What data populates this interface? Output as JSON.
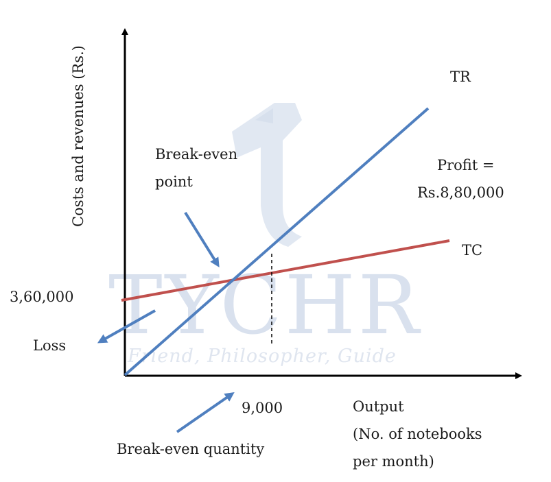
{
  "watermark": {
    "brand": "TYCHR",
    "tagline": "Friend, Philosopher, Guide"
  },
  "axes": {
    "y_label": "Costs and revenues (Rs.)",
    "x_label_line1": "Output",
    "x_label_line2": "(No. of notebooks",
    "x_label_line3": "per month)"
  },
  "lines": {
    "tr_label": "TR",
    "tc_label": "TC",
    "tr_color": "#4f7fbf",
    "tc_color": "#c0504d"
  },
  "annotations": {
    "break_even_point_line1": "Break-even",
    "break_even_point_line2": "point",
    "profit_line1": "Profit =",
    "profit_line2": "Rs.8,80,000",
    "fixed_cost_value": "3,60,000",
    "loss": "Loss",
    "break_even_quantity_value": "9,000",
    "break_even_quantity": "Break-even quantity"
  },
  "colors": {
    "arrow": "#4f7fbf",
    "axis": "#000000"
  }
}
